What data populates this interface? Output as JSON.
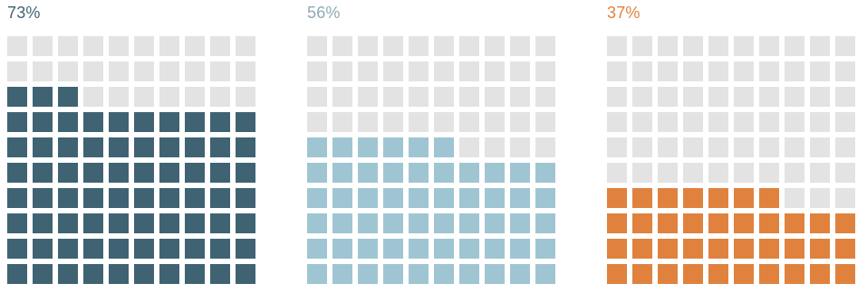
{
  "chart_data": [
    {
      "type": "waffle",
      "label": "73%",
      "value": 73,
      "total": 100,
      "rows": 10,
      "cols": 10,
      "fill_color": "#3f6373",
      "empty_color": "#e3e3e4",
      "label_color": "#3f6373"
    },
    {
      "type": "waffle",
      "label": "56%",
      "value": 56,
      "total": 100,
      "rows": 10,
      "cols": 10,
      "fill_color": "#9fc5d3",
      "empty_color": "#e3e3e4",
      "label_color": "#8fa9b4"
    },
    {
      "type": "waffle",
      "label": "37%",
      "value": 37,
      "total": 100,
      "rows": 10,
      "cols": 10,
      "fill_color": "#e0823e",
      "empty_color": "#e3e3e4",
      "label_color": "#e0823e"
    }
  ]
}
